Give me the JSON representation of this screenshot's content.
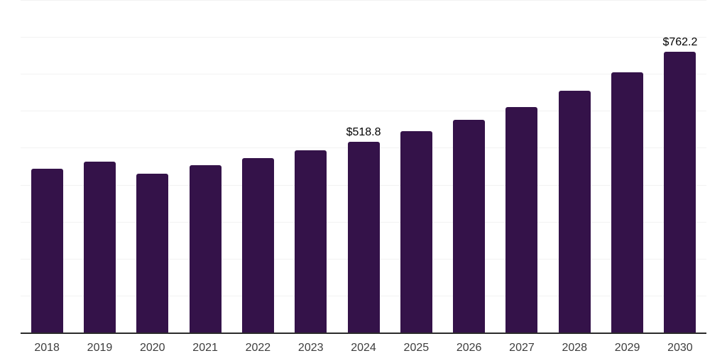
{
  "chart_data": {
    "type": "bar",
    "title": "",
    "xlabel": "",
    "ylabel": "",
    "categories": [
      "2018",
      "2019",
      "2020",
      "2021",
      "2022",
      "2023",
      "2024",
      "2025",
      "2026",
      "2027",
      "2028",
      "2029",
      "2030"
    ],
    "values": [
      445.1,
      464.3,
      431.7,
      454.7,
      473.9,
      495.0,
      518.8,
      546.8,
      577.5,
      612.6,
      655.6,
      706.0,
      762.2
    ],
    "data_labels": [
      "",
      "",
      "",
      "",
      "",
      "",
      "$518.8",
      "",
      "",
      "",
      "",
      "",
      "$762.2"
    ],
    "ylim": [
      0,
      900
    ],
    "grid_step": 100,
    "grid": "horizontal",
    "y_tick_labels_shown": false,
    "legend_position": "none"
  },
  "colors": {
    "bar": "#341249",
    "gridline": "#f2f2f2",
    "axis_line": "#2b2b2b",
    "tick_label": "#3d3d3d",
    "data_label": "#000000",
    "background": "#ffffff"
  }
}
